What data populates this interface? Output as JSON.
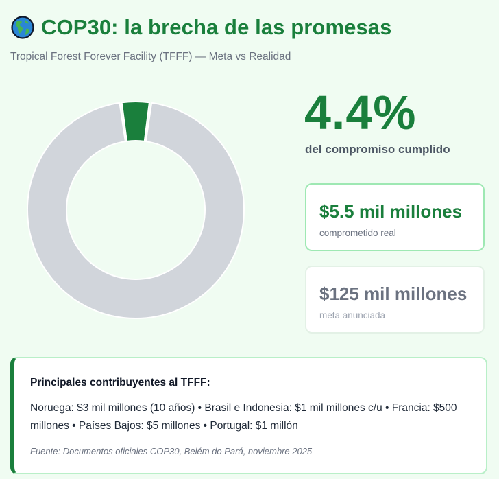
{
  "header": {
    "icon": "globe-americas-icon",
    "title": "COP30: la brecha de las promesas",
    "subtitle": "Tropical Forest Forever Facility (TFFF) — Meta vs Realidad"
  },
  "colors": {
    "accent": "#1a7f3c",
    "donut_remaining": "#d1d5db",
    "background": "#f0fcf2"
  },
  "highlight": {
    "percent": "4.4%",
    "caption": "del compromiso cumplido"
  },
  "cards": {
    "real": {
      "amount": "$5.5 mil millones",
      "label": "comprometido real"
    },
    "goal": {
      "amount": "$125 mil millones",
      "label": "meta anunciada"
    }
  },
  "info": {
    "title": "Principales contribuyentes al TFFF:",
    "body": "Noruega: $3 mil millones (10 años) • Brasil e Indonesia: $1 mil millones c/u • Francia: $500 millones • Países Bajos: $5 millones • Portugal: $1 millón",
    "source": "Fuente: Documentos oficiales COP30, Belém do Pará, noviembre 2025"
  },
  "chart_data": {
    "type": "pie",
    "variant": "donut",
    "categories": [
      "comprometido real",
      "meta anunciada"
    ],
    "values": [
      5.5,
      119.5
    ],
    "total": 125,
    "colors": [
      "#1a7f3c",
      "#d1d5db"
    ]
  }
}
